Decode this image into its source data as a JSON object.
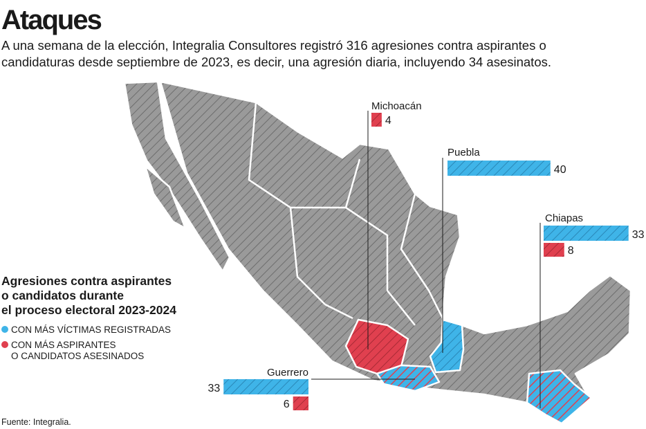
{
  "header": {
    "title": "Ataques",
    "subtitle": [
      "A una semana de la elección, Integralia Consultores registró 316 agresiones contra aspirantes o",
      "candidaturas desde septiembre de 2023, es decir, una agresión diaria, incluyendo 34 asesinatos."
    ]
  },
  "legend": {
    "title": [
      "Agresiones contra aspirantes",
      "o candidatos durante",
      "el proceso electoral 2023-2024"
    ],
    "items": [
      {
        "color": "#3fb4e8",
        "label": [
          "CON MÁS VÍCTIMAS REGISTRADAS"
        ]
      },
      {
        "color": "#e0404f",
        "label": [
          "CON MÁS ASPIRANTES",
          "O CANDIDATOS ASESINADOS"
        ]
      }
    ]
  },
  "states": [
    {
      "name": "Michoacán",
      "victims": null,
      "killed": 4
    },
    {
      "name": "Puebla",
      "victims": 40,
      "killed": null
    },
    {
      "name": "Chiapas",
      "victims": 33,
      "killed": 8
    },
    {
      "name": "Guerrero",
      "victims": 33,
      "killed": 6
    }
  ],
  "source": "Fuente: Integralia."
}
